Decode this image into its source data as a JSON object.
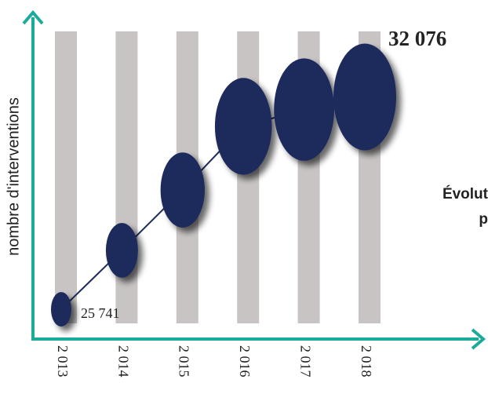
{
  "chart_data": {
    "type": "line",
    "y_label": "nombre d'interventions",
    "annotations": [
      "Évolut",
      "p"
    ],
    "categories": [
      "2 013",
      "2 014",
      "2 015",
      "2 016",
      "2 017",
      "2 018"
    ],
    "values": [
      25741,
      27500,
      29300,
      31200,
      31700,
      32076
    ],
    "value_labels": [
      "25 741",
      null,
      null,
      null,
      null,
      "32 076"
    ],
    "color": "#1d2a5c",
    "ylim": [
      24900,
      34500
    ]
  }
}
